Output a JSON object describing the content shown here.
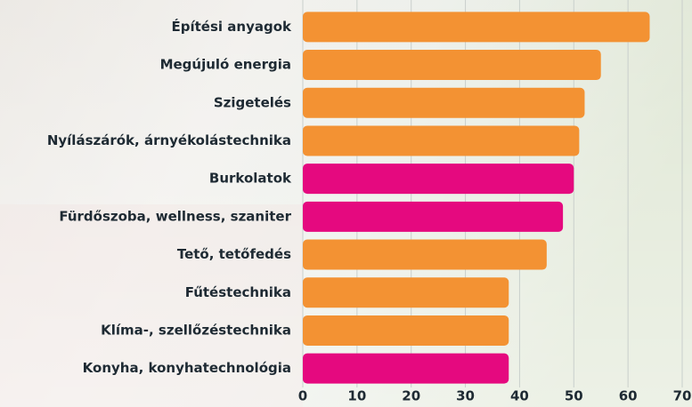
{
  "chart_data": {
    "type": "barh",
    "categories": [
      "Építési anyagok",
      "Megújuló energia",
      "Szigetelés",
      "Nyílászárók, árnyékolástechnika",
      "Burkolatok",
      "Fürdőszoba, wellness, szaniter",
      "Tető, tetőfedés",
      "Fűtéstechnika",
      "Klíma-, szellőzéstechnika",
      "Konyha, konyhatechnológia"
    ],
    "values": [
      64,
      55,
      52,
      51,
      50,
      48,
      45,
      38,
      38,
      38
    ],
    "colors": [
      "#f39233",
      "#f39233",
      "#f39233",
      "#f39233",
      "#e5097f",
      "#e5097f",
      "#f39233",
      "#f39233",
      "#f39233",
      "#e5097f"
    ],
    "xlim": [
      0,
      70
    ],
    "xticks": [
      0,
      10,
      20,
      30,
      40,
      50,
      60,
      70
    ],
    "grid": true
  }
}
